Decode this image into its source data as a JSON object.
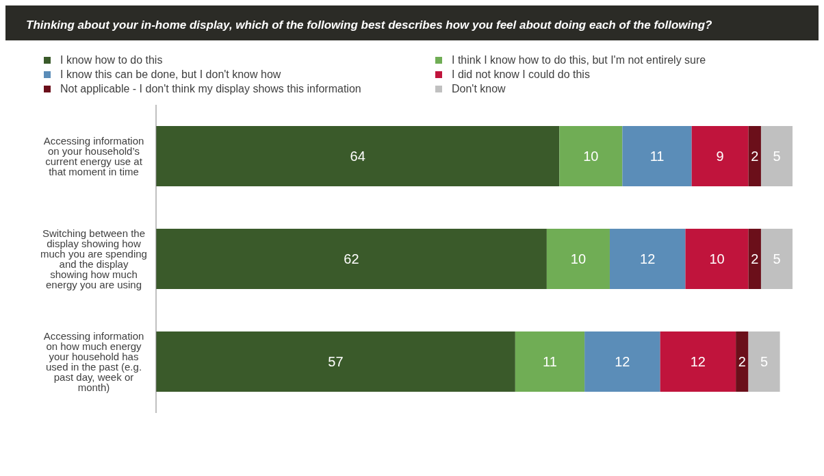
{
  "chart_data": {
    "type": "bar",
    "orientation": "horizontal",
    "stacked": true,
    "title": "Thinking about your in-home display, which of the following best describes how you feel about doing each of the following?",
    "categories": [
      "Accessing information on your household’s current energy use at that moment in time",
      "Switching between the display showing how much you are spending and the display showing how much energy you are using",
      "Accessing information on how much energy your household has used in the past (e.g. past day, week or month)"
    ],
    "series": [
      {
        "name": "I know how to do this",
        "color": "#3a5a2a",
        "values": [
          64,
          62,
          57
        ]
      },
      {
        "name": "I think I know how to do this, but I'm not entirely sure",
        "color": "#70ad55",
        "values": [
          10,
          10,
          11
        ]
      },
      {
        "name": "I know this can be done, but I don't know how",
        "color": "#5b8db8",
        "values": [
          11,
          12,
          12
        ]
      },
      {
        "name": "I did not know I could do this",
        "color": "#c0143c",
        "values": [
          9,
          10,
          12
        ]
      },
      {
        "name": "Not applicable -  I don't think my display shows this information",
        "color": "#6b0f1a",
        "values": [
          2,
          2,
          2
        ]
      },
      {
        "name": "Don't know",
        "color": "#c0c0c0",
        "values": [
          5,
          5,
          5
        ]
      }
    ],
    "data_labels": true,
    "legend": "top",
    "tick_labels": "y"
  }
}
